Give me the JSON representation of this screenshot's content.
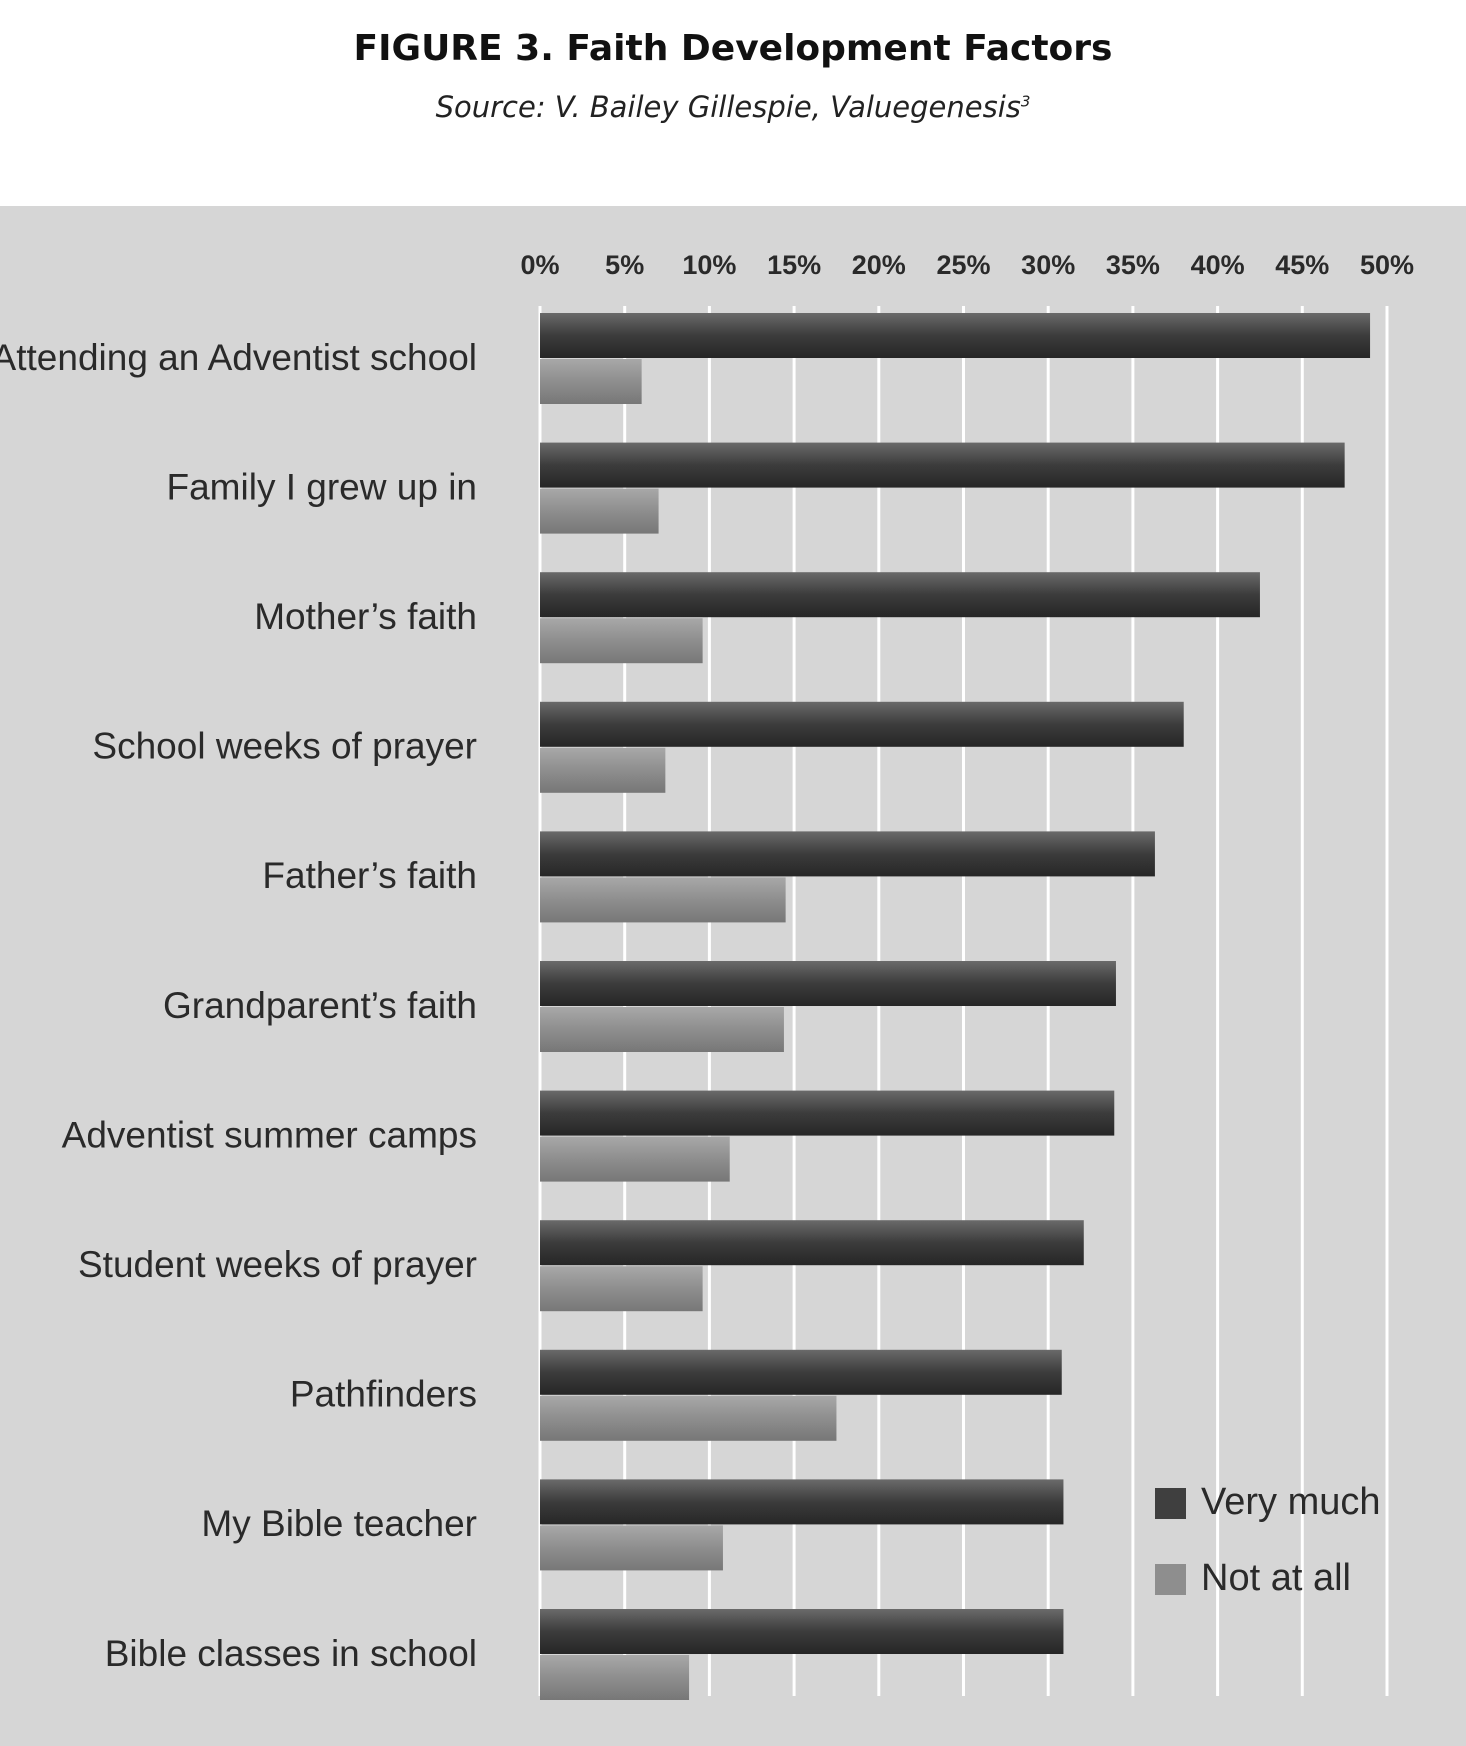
{
  "figure": {
    "title": "FIGURE 3. Faith Development Factors",
    "subtitle": "Source: V. Bailey Gillespie, Valuegenesis",
    "subtitle_sup": "3"
  },
  "colors": {
    "panel": "#d6d6d6",
    "very_much": "#3f3f3f",
    "not_at_all": "#8e8e8e",
    "grid": "#ffffff",
    "text": "#2a2a2a"
  },
  "chart_data": {
    "type": "bar",
    "orientation": "horizontal",
    "categories": [
      "Attending an Adventist school",
      "Family I grew up in",
      "Mother’s faith",
      "School weeks of prayer",
      "Father’s faith",
      "Grandparent’s faith",
      "Adventist summer camps",
      "Student weeks of prayer",
      "Pathfinders",
      "My Bible teacher",
      "Bible classes in school"
    ],
    "series": [
      {
        "name": "Very much",
        "color": "#3f3f3f",
        "values": [
          49,
          47.5,
          42.5,
          38,
          36.3,
          34,
          33.9,
          32.1,
          30.8,
          30.9,
          30.9
        ]
      },
      {
        "name": "Not at all",
        "color": "#8e8e8e",
        "values": [
          6,
          7,
          9.6,
          7.4,
          14.5,
          14.4,
          11.2,
          9.6,
          17.5,
          10.8,
          8.8
        ]
      }
    ],
    "xlim": [
      0,
      50
    ],
    "xticks": [
      0,
      5,
      10,
      15,
      20,
      25,
      30,
      35,
      40,
      45,
      50
    ],
    "xtick_labels": [
      "0%",
      "5%",
      "10%",
      "15%",
      "20%",
      "25%",
      "30%",
      "35%",
      "40%",
      "45%",
      "50%"
    ],
    "axis_position": "top",
    "grid": true,
    "legend": {
      "placement": "bottom-right",
      "entries": [
        "Very much",
        "Not at all"
      ]
    }
  }
}
